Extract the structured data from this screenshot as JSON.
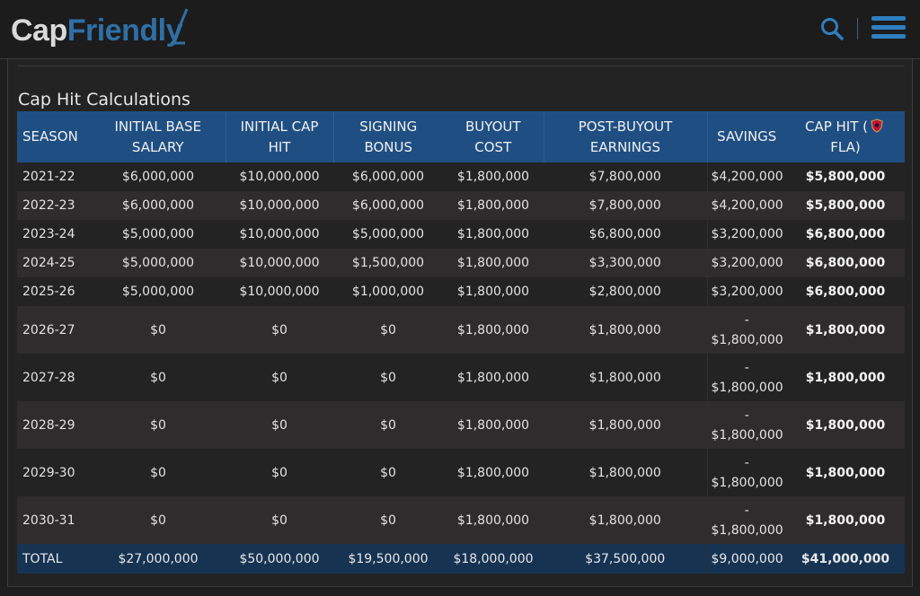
{
  "header": {
    "logo_part1": "Cap",
    "logo_part2": "Friendly",
    "search_icon": "search-icon",
    "menu_icon": "hamburger-menu-icon",
    "accent_color": "#2f7fc0"
  },
  "section": {
    "title": "Cap Hit Calculations"
  },
  "table": {
    "headers": {
      "season": "SEASON",
      "initial_base_salary_1": "INITIAL BASE",
      "initial_base_salary_2": "SALARY",
      "initial_cap_hit_1": "INITIAL CAP",
      "initial_cap_hit_2": "HIT",
      "signing_bonus_1": "SIGNING",
      "signing_bonus_2": "BONUS",
      "buyout_cost_1": "BUYOUT",
      "buyout_cost_2": "COST",
      "post_buyout_1": "POST-BUYOUT",
      "post_buyout_2": "EARNINGS",
      "savings": "SAVINGS",
      "cap_hit_prefix": "CAP HIT (",
      "cap_hit_suffix": " FLA)",
      "team_logo_icon": "florida-panthers-logo-icon"
    },
    "rows": [
      {
        "season": "2021-22",
        "base": "$6,000,000",
        "cap": "$10,000,000",
        "bonus": "$6,000,000",
        "buyout": "$1,800,000",
        "post": "$7,800,000",
        "savings_a": "$4,200,000",
        "savings_b": "",
        "hit": "$5,800,000"
      },
      {
        "season": "2022-23",
        "base": "$6,000,000",
        "cap": "$10,000,000",
        "bonus": "$6,000,000",
        "buyout": "$1,800,000",
        "post": "$7,800,000",
        "savings_a": "$4,200,000",
        "savings_b": "",
        "hit": "$5,800,000"
      },
      {
        "season": "2023-24",
        "base": "$5,000,000",
        "cap": "$10,000,000",
        "bonus": "$5,000,000",
        "buyout": "$1,800,000",
        "post": "$6,800,000",
        "savings_a": "$3,200,000",
        "savings_b": "",
        "hit": "$6,800,000"
      },
      {
        "season": "2024-25",
        "base": "$5,000,000",
        "cap": "$10,000,000",
        "bonus": "$1,500,000",
        "buyout": "$1,800,000",
        "post": "$3,300,000",
        "savings_a": "$3,200,000",
        "savings_b": "",
        "hit": "$6,800,000"
      },
      {
        "season": "2025-26",
        "base": "$5,000,000",
        "cap": "$10,000,000",
        "bonus": "$1,000,000",
        "buyout": "$1,800,000",
        "post": "$2,800,000",
        "savings_a": "$3,200,000",
        "savings_b": "",
        "hit": "$6,800,000"
      },
      {
        "season": "2026-27",
        "base": "$0",
        "cap": "$0",
        "bonus": "$0",
        "buyout": "$1,800,000",
        "post": "$1,800,000",
        "savings_a": "-",
        "savings_b": "$1,800,000",
        "hit": "$1,800,000"
      },
      {
        "season": "2027-28",
        "base": "$0",
        "cap": "$0",
        "bonus": "$0",
        "buyout": "$1,800,000",
        "post": "$1,800,000",
        "savings_a": "-",
        "savings_b": "$1,800,000",
        "hit": "$1,800,000"
      },
      {
        "season": "2028-29",
        "base": "$0",
        "cap": "$0",
        "bonus": "$0",
        "buyout": "$1,800,000",
        "post": "$1,800,000",
        "savings_a": "-",
        "savings_b": "$1,800,000",
        "hit": "$1,800,000"
      },
      {
        "season": "2029-30",
        "base": "$0",
        "cap": "$0",
        "bonus": "$0",
        "buyout": "$1,800,000",
        "post": "$1,800,000",
        "savings_a": "-",
        "savings_b": "$1,800,000",
        "hit": "$1,800,000"
      },
      {
        "season": "2030-31",
        "base": "$0",
        "cap": "$0",
        "bonus": "$0",
        "buyout": "$1,800,000",
        "post": "$1,800,000",
        "savings_a": "-",
        "savings_b": "$1,800,000",
        "hit": "$1,800,000"
      }
    ],
    "total": {
      "label": "TOTAL",
      "base": "$27,000,000",
      "cap": "$50,000,000",
      "bonus": "$19,500,000",
      "buyout": "$18,000,000",
      "post": "$37,500,000",
      "savings": "$9,000,000",
      "hit": "$41,000,000"
    }
  }
}
